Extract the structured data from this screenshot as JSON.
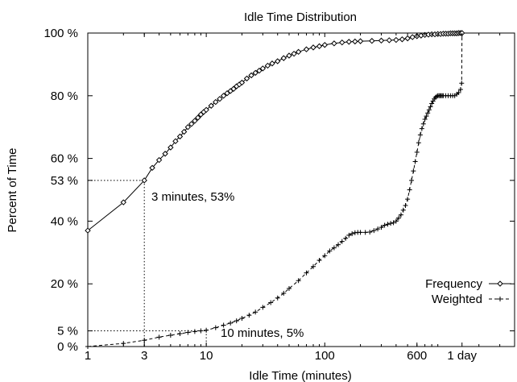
{
  "chart_data": {
    "type": "line",
    "title": "Idle Time Distribution",
    "xlabel": "Idle Time (minutes)",
    "ylabel": "Percent of Time",
    "x_scale": "log",
    "xlim": [
      1,
      4000
    ],
    "ylim": [
      0,
      100
    ],
    "grid": false,
    "legend_position": "right",
    "x_ticks": [
      {
        "value": 1,
        "label": "1"
      },
      {
        "value": 3,
        "label": "3"
      },
      {
        "value": 10,
        "label": "10"
      },
      {
        "value": 100,
        "label": "100"
      },
      {
        "value": 600,
        "label": "600"
      },
      {
        "value": 1440,
        "label": "1 day"
      }
    ],
    "y_ticks": [
      {
        "value": 0,
        "label": "0 %"
      },
      {
        "value": 5,
        "label": "5 %"
      },
      {
        "value": 20,
        "label": "20 %"
      },
      {
        "value": 40,
        "label": "40 %"
      },
      {
        "value": 53,
        "label": "53 %"
      },
      {
        "value": 60,
        "label": "60 %"
      },
      {
        "value": 80,
        "label": "80 %"
      },
      {
        "value": 100,
        "label": "100 %"
      }
    ],
    "series": [
      {
        "name": "Frequency",
        "marker": "diamond",
        "line": "solid",
        "x": [
          1,
          2,
          3,
          3.5,
          4,
          4.5,
          5,
          5.5,
          6,
          6.5,
          7,
          7.5,
          8,
          8.5,
          9,
          9.5,
          10,
          11,
          12,
          13,
          14,
          15,
          16,
          17,
          18,
          19,
          20,
          22,
          24,
          26,
          28,
          30,
          33,
          36,
          40,
          45,
          50,
          55,
          60,
          70,
          80,
          90,
          100,
          120,
          140,
          160,
          180,
          200,
          250,
          300,
          350,
          400,
          450,
          500,
          550,
          600,
          650,
          700,
          750,
          800,
          850,
          900,
          950,
          1000,
          1050,
          1100,
          1150,
          1200,
          1250,
          1300,
          1350,
          1400,
          1440
        ],
        "y": [
          37,
          46,
          53,
          57,
          59.5,
          61.5,
          63.5,
          65.5,
          67,
          68.5,
          70,
          71,
          72,
          73,
          74,
          74.8,
          75.5,
          76.8,
          78,
          79,
          80,
          80.8,
          81.5,
          82.2,
          83,
          83.6,
          84.2,
          85.5,
          86.5,
          87.3,
          88,
          88.7,
          89.6,
          90.3,
          91,
          92,
          92.8,
          93.4,
          94,
          94.8,
          95.4,
          95.8,
          96.2,
          96.7,
          97,
          97.2,
          97.3,
          97.4,
          97.5,
          97.6,
          97.7,
          97.8,
          98,
          98.3,
          98.7,
          99,
          99.2,
          99.4,
          99.5,
          99.6,
          99.6,
          99.7,
          99.7,
          99.8,
          99.8,
          99.8,
          99.9,
          99.9,
          99.9,
          99.9,
          100,
          100,
          100
        ]
      },
      {
        "name": "Weighted",
        "marker": "plus",
        "line": "dashed",
        "x": [
          1,
          2,
          3,
          4,
          5,
          6,
          7,
          8,
          9,
          10,
          12,
          14,
          16,
          18,
          20,
          23,
          26,
          30,
          35,
          40,
          45,
          50,
          60,
          70,
          80,
          90,
          100,
          110,
          120,
          130,
          140,
          150,
          160,
          170,
          180,
          190,
          200,
          220,
          240,
          260,
          280,
          300,
          320,
          340,
          360,
          380,
          400,
          420,
          440,
          460,
          480,
          500,
          520,
          540,
          560,
          580,
          600,
          620,
          640,
          660,
          680,
          700,
          720,
          740,
          760,
          780,
          800,
          820,
          840,
          860,
          880,
          900,
          920,
          940,
          960,
          980,
          1000,
          1050,
          1100,
          1150,
          1200,
          1250,
          1300,
          1350,
          1400,
          1430,
          1440
        ],
        "y": [
          0,
          1,
          2,
          3,
          3.6,
          4.1,
          4.5,
          4.8,
          5,
          5.2,
          6,
          6.8,
          7.5,
          8.2,
          9,
          10,
          11,
          12.5,
          14,
          15.5,
          17,
          18.5,
          21,
          23.5,
          25.5,
          27.5,
          29,
          30.5,
          31.5,
          32.5,
          33.5,
          34.5,
          35.5,
          36,
          36.3,
          36.4,
          36.4,
          36.4,
          36.5,
          37,
          37.5,
          38,
          38.7,
          39,
          39.3,
          39.5,
          40,
          41,
          42,
          43.5,
          45,
          47,
          50,
          53,
          56,
          59,
          62,
          65,
          67.5,
          69.5,
          71,
          72.5,
          73.5,
          74.5,
          75.5,
          76.5,
          77.5,
          78.3,
          79,
          79.5,
          79.8,
          80,
          80,
          80,
          80,
          80,
          80,
          80,
          80,
          80,
          80,
          80,
          80.5,
          81,
          82,
          84,
          100
        ]
      }
    ],
    "annotations": [
      {
        "text": "3 minutes, 53%",
        "x": 3,
        "y": 53
      },
      {
        "text": "10 minutes, 5%",
        "x": 10,
        "y": 5
      }
    ]
  }
}
